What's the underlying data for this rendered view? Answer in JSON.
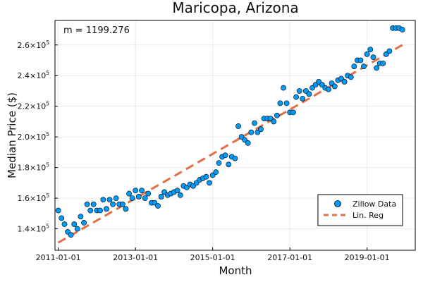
{
  "chart_data": {
    "type": "scatter",
    "title": "Maricopa, Arizona",
    "xlabel": "Month",
    "ylabel": "Median Price ($)",
    "annotation": "m = 1199.276",
    "x_ticks": [
      "2011-01-01",
      "2013-01-01",
      "2015-01-01",
      "2017-01-01",
      "2019-01-01"
    ],
    "y_ticks": [
      {
        "mantissa": "1.4",
        "exponent": "5",
        "value": 140000
      },
      {
        "mantissa": "1.6",
        "exponent": "5",
        "value": 160000
      },
      {
        "mantissa": "1.8",
        "exponent": "5",
        "value": 180000
      },
      {
        "mantissa": "2.0",
        "exponent": "5",
        "value": 200000
      },
      {
        "mantissa": "2.2",
        "exponent": "5",
        "value": 220000
      },
      {
        "mantissa": "2.4",
        "exponent": "5",
        "value": 240000
      },
      {
        "mantissa": "2.6",
        "exponent": "5",
        "value": 260000
      }
    ],
    "xlim": [
      "2010-12-01",
      "2020-04-01"
    ],
    "ylim": [
      126000,
      276000
    ],
    "grid": true,
    "legend_position": "bottom-right",
    "series": [
      {
        "name": "Zillow Data",
        "kind": "scatter",
        "color": "#009af9",
        "x": [
          "2011-01",
          "2011-02",
          "2011-03",
          "2011-04",
          "2011-05",
          "2011-06",
          "2011-07",
          "2011-08",
          "2011-09",
          "2011-10",
          "2011-11",
          "2011-12",
          "2012-01",
          "2012-02",
          "2012-03",
          "2012-04",
          "2012-05",
          "2012-06",
          "2012-07",
          "2012-08",
          "2012-09",
          "2012-10",
          "2012-11",
          "2012-12",
          "2013-01",
          "2013-02",
          "2013-03",
          "2013-04",
          "2013-05",
          "2013-06",
          "2013-07",
          "2013-08",
          "2013-09",
          "2013-10",
          "2013-11",
          "2013-12",
          "2014-01",
          "2014-02",
          "2014-03",
          "2014-04",
          "2014-05",
          "2014-06",
          "2014-07",
          "2014-08",
          "2014-09",
          "2014-10",
          "2014-11",
          "2014-12",
          "2015-01",
          "2015-02",
          "2015-03",
          "2015-04",
          "2015-05",
          "2015-06",
          "2015-07",
          "2015-08",
          "2015-09",
          "2015-10",
          "2015-11",
          "2015-12",
          "2016-01",
          "2016-02",
          "2016-03",
          "2016-04",
          "2016-05",
          "2016-06",
          "2016-07",
          "2016-08",
          "2016-09",
          "2016-10",
          "2016-11",
          "2016-12",
          "2017-01",
          "2017-02",
          "2017-03",
          "2017-04",
          "2017-05",
          "2017-06",
          "2017-07",
          "2017-08",
          "2017-09",
          "2017-10",
          "2017-11",
          "2017-12",
          "2018-01",
          "2018-02",
          "2018-03",
          "2018-04",
          "2018-05",
          "2018-06",
          "2018-07",
          "2018-08",
          "2018-09",
          "2018-10",
          "2018-11",
          "2018-12",
          "2019-01",
          "2019-02",
          "2019-03",
          "2019-04",
          "2019-05",
          "2019-06",
          "2019-07",
          "2019-08",
          "2019-09",
          "2019-10",
          "2019-11",
          "2019-12"
        ],
        "y": [
          152000,
          147000,
          143000,
          138000,
          136000,
          143000,
          140000,
          148000,
          144000,
          156000,
          152000,
          156000,
          152000,
          152000,
          159000,
          153000,
          159000,
          156000,
          160000,
          156000,
          156000,
          153000,
          163000,
          160000,
          165000,
          161000,
          165000,
          160000,
          163000,
          157000,
          157000,
          155000,
          161000,
          164000,
          162000,
          163000,
          164000,
          165000,
          162000,
          168000,
          167000,
          169000,
          168000,
          170000,
          172000,
          173000,
          174000,
          170000,
          175000,
          177000,
          183000,
          187000,
          188000,
          182000,
          187000,
          186000,
          207000,
          200000,
          198000,
          196000,
          203000,
          209000,
          203000,
          205000,
          212000,
          212000,
          212000,
          210000,
          214000,
          222000,
          232000,
          222000,
          216000,
          216000,
          226000,
          230000,
          225000,
          230000,
          228000,
          232000,
          234000,
          236000,
          234000,
          232000,
          231000,
          235000,
          233000,
          237000,
          238000,
          236000,
          240000,
          239000,
          246000,
          250000,
          250000,
          246000,
          254000,
          257000,
          252000,
          245000,
          248000,
          248000,
          254000,
          256000,
          271000,
          271000,
          271000,
          270000
        ]
      },
      {
        "name": "Lin. Reg",
        "kind": "line",
        "style": "dashed",
        "color": "#e26f46",
        "x": [
          "2011-01",
          "2019-12"
        ],
        "y": [
          131000,
          260000
        ]
      }
    ]
  }
}
